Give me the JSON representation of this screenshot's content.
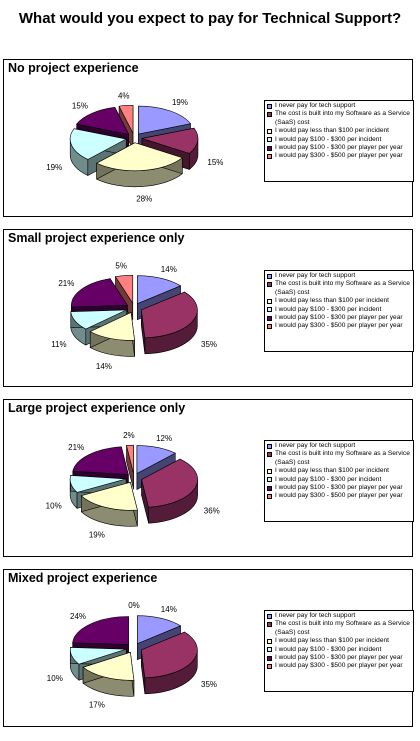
{
  "page_title": "What would you expect to pay for Technical Support?",
  "colors": [
    "#9999ff",
    "#993366",
    "#ffffcc",
    "#ccffff",
    "#660066",
    "#ff8080"
  ],
  "legend_labels": [
    "I never pay for tech support",
    "The cost is built into my Software as a Service (SaaS) cost",
    "I would pay less than $100 per incident",
    "I would pay $100 - $300 per incident",
    "I would pay $100 - $300 per player per year",
    "I would pay $300 - $500 per player per year"
  ],
  "chart_data": [
    {
      "type": "pie",
      "title": "No project experience",
      "categories": [
        "I never pay for tech support",
        "The cost is built into my Software as a Service (SaaS) cost",
        "I would pay less than $100 per incident",
        "I would pay $100 - $300 per incident",
        "I would pay $100 - $300 per player per year",
        "I would pay $300 - $500 per player per year"
      ],
      "values": [
        19,
        15,
        28,
        19,
        15,
        4
      ],
      "labels": [
        "19%",
        "15%",
        "28%",
        "19%",
        "15%",
        "4%"
      ]
    },
    {
      "type": "pie",
      "title": "Small project experience only",
      "categories": [
        "I never pay for tech support",
        "The cost is built into my Software as a Service (SaaS) cost",
        "I would pay less than $100 per incident",
        "I would pay $100 - $300 per incident",
        "I would pay $100 - $300 per player per year",
        "I would pay $300 - $500 per player per year"
      ],
      "values": [
        14,
        35,
        14,
        11,
        21,
        5
      ],
      "labels": [
        "14%",
        "35%",
        "14%",
        "11%",
        "21%",
        "5%"
      ]
    },
    {
      "type": "pie",
      "title": "Large project experience only",
      "categories": [
        "I never pay for tech support",
        "The cost is built into my Software as a Service (SaaS) cost",
        "I would pay less than $100 per incident",
        "I would pay $100 - $300 per incident",
        "I would pay $100 - $300 per player per year",
        "I would pay $300 - $500 per player per year"
      ],
      "values": [
        12,
        36,
        19,
        10,
        21,
        2
      ],
      "labels": [
        "12%",
        "36%",
        "19%",
        "10%",
        "21%",
        "2%"
      ]
    },
    {
      "type": "pie",
      "title": "Mixed project experience",
      "categories": [
        "I never pay for tech support",
        "The cost is built into my Software as a Service (SaaS) cost",
        "I would pay less than $100 per incident",
        "I would pay $100 - $300 per incident",
        "I would pay $100 - $300 per player per year",
        "I would pay $300 - $500 per player per year"
      ],
      "values": [
        14,
        35,
        17,
        10,
        24,
        0
      ],
      "labels": [
        "14%",
        "35%",
        "17%",
        "10%",
        "24%",
        "0%"
      ]
    }
  ]
}
